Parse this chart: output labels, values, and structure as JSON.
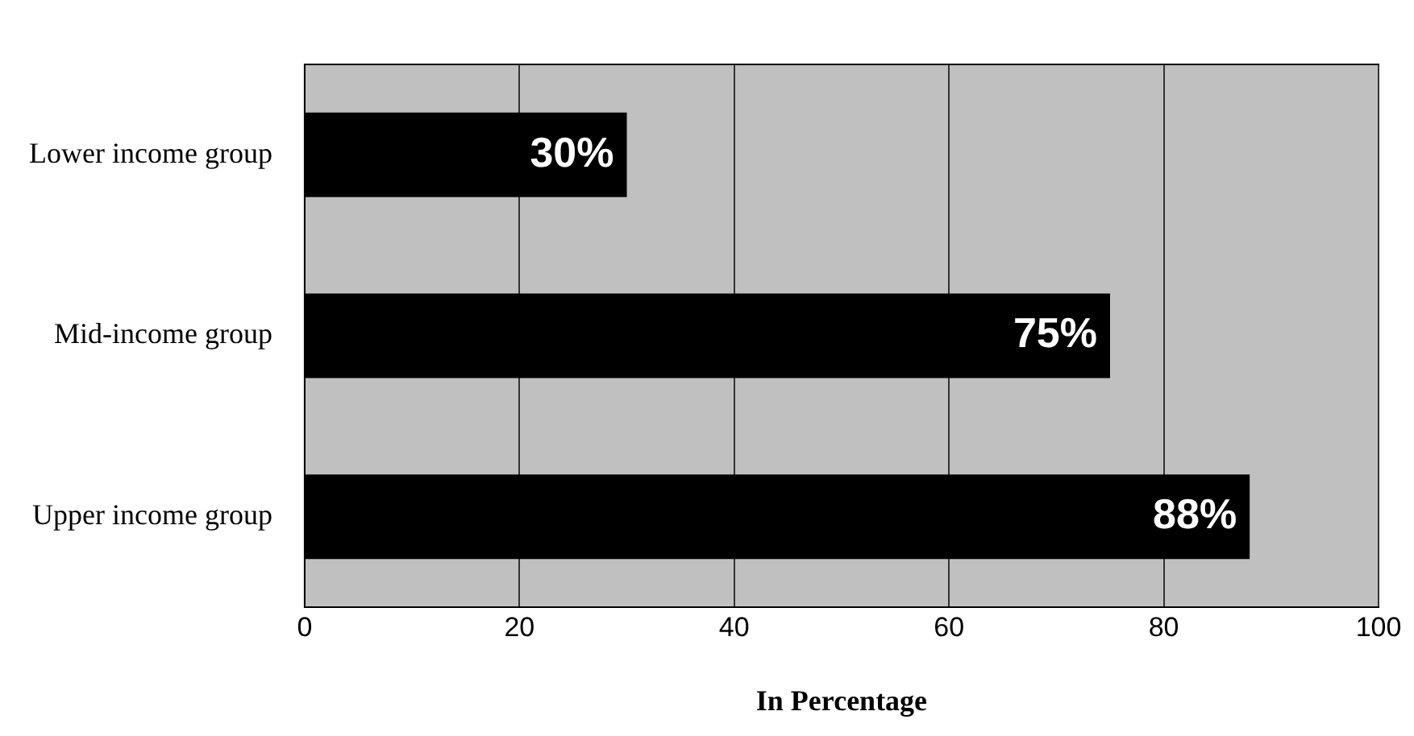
{
  "chart_data": {
    "type": "bar",
    "orientation": "horizontal",
    "categories": [
      "Lower income group",
      "Mid-income group",
      "Upper income group"
    ],
    "values": [
      30,
      75,
      88
    ],
    "color": "#000000",
    "value_labels": [
      "30%",
      "75%",
      "88%"
    ],
    "xlabel": "In Percentage",
    "xlim": [
      0,
      100
    ],
    "xticks": [
      0,
      20,
      40,
      60,
      80,
      100
    ],
    "grid": "x",
    "legend": false
  }
}
